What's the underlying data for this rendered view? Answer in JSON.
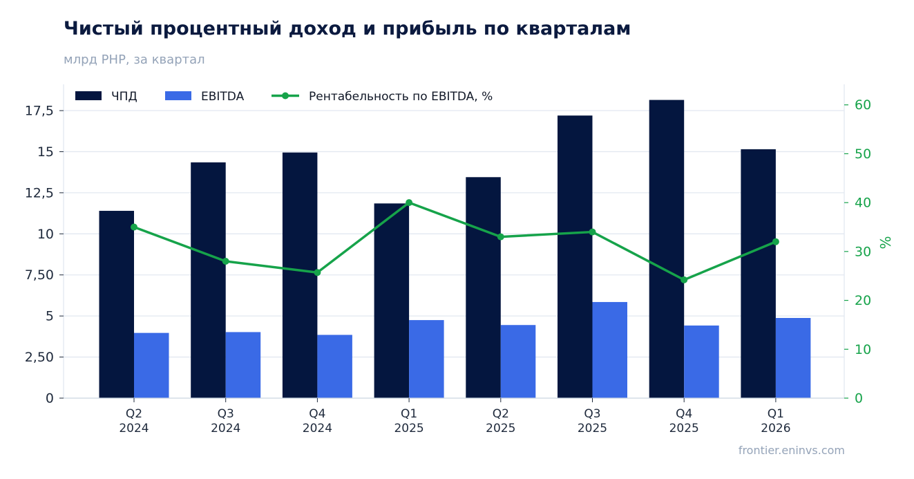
{
  "title": "Чистый процентный доход и прибыль по кварталам",
  "subtitle": "млрд РНР, за квартал",
  "footer": "frontier.eninvs.com",
  "colors": {
    "npd": "#04163f",
    "ebitda": "#3a6ae6",
    "margin": "#16a34a",
    "grid": "#e2e8f0",
    "axis_text": "#1e293b"
  },
  "chart_data": {
    "type": "bar",
    "categories": [
      [
        "Q2",
        "2024"
      ],
      [
        "Q3",
        "2024"
      ],
      [
        "Q4",
        "2024"
      ],
      [
        "Q1",
        "2025"
      ],
      [
        "Q2",
        "2025"
      ],
      [
        "Q3",
        "2025"
      ],
      [
        "Q4",
        "2025"
      ],
      [
        "Q1",
        "2026"
      ]
    ],
    "series": [
      {
        "name": "ЧПД",
        "type": "bar",
        "axis": "left",
        "values": [
          11.4,
          14.35,
          14.95,
          11.85,
          13.45,
          17.2,
          18.15,
          15.15
        ]
      },
      {
        "name": "EBITDA",
        "type": "bar",
        "axis": "left",
        "values": [
          3.97,
          4.02,
          3.85,
          4.75,
          4.45,
          5.85,
          4.42,
          4.88
        ]
      },
      {
        "name": "Рентабельность по EBITDA, %",
        "type": "line",
        "axis": "right",
        "values": [
          35,
          28,
          25.7,
          40,
          33,
          34,
          24.2,
          32
        ]
      }
    ],
    "y_left": {
      "min": 0,
      "max": 19.1,
      "ticks": [
        0,
        2.5,
        5,
        7.5,
        10,
        12.5,
        15,
        17.5
      ],
      "tick_labels": [
        "0",
        "2,50",
        "5",
        "7,50",
        "10",
        "12,5",
        "15",
        "17,5"
      ]
    },
    "y_right": {
      "label": "%",
      "min": 0,
      "max": 64.2,
      "ticks": [
        0,
        10,
        20,
        30,
        40,
        50,
        60
      ],
      "tick_labels": [
        "0",
        "10",
        "20",
        "30",
        "40",
        "50",
        "60"
      ]
    },
    "grid": "horizontal",
    "legend": "top-left"
  }
}
